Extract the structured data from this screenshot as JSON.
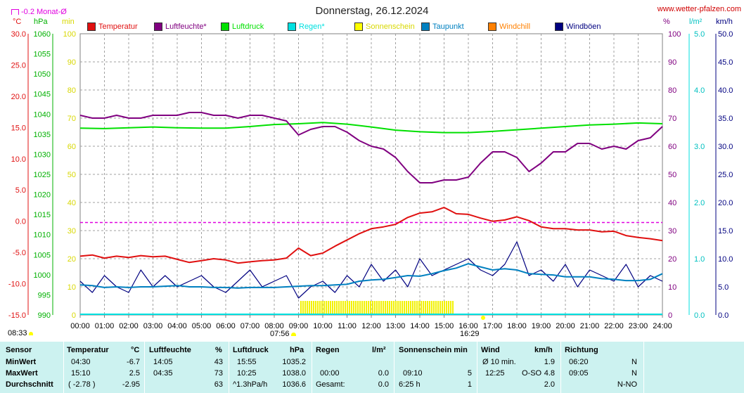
{
  "header": {
    "title": "Donnerstag, 26.12.2024",
    "source": "www.wetter-pfalzen.com",
    "monthly_avg_marker": "-0.2 Monat-Ø"
  },
  "units": {
    "temp": "°C",
    "pressure": "hPa",
    "min": "min",
    "humidity": "%",
    "rain": "l/m²",
    "wind": "km/h"
  },
  "sun_times": {
    "sunrise": "07:56",
    "sunset": "16:29",
    "day_length": "08:33"
  },
  "colors": {
    "temperature": "#e01010",
    "humidity": "#800080",
    "pressure": "#00e000",
    "rain": "#00e0e0",
    "sunshine": "#ffff00",
    "dewpoint": "#0080c0",
    "windchill": "#ff8000",
    "gust": "#000080",
    "avg_line": "#e000e0"
  },
  "legend": [
    {
      "label": "Temperatur",
      "color": "#e01010"
    },
    {
      "label": "Luftfeuchte*",
      "color": "#800080"
    },
    {
      "label": "Luftdruck",
      "color": "#00e000"
    },
    {
      "label": "Regen*",
      "color": "#00e0e0"
    },
    {
      "label": "Sonnenschein",
      "color": "#ffff00"
    },
    {
      "label": "Taupunkt",
      "color": "#0080c0"
    },
    {
      "label": "Windchill",
      "color": "#ff8000"
    },
    {
      "label": "Windböen",
      "color": "#000080"
    }
  ],
  "chart_data": {
    "type": "line",
    "title": "Donnerstag, 26.12.2024",
    "x_ticks": [
      "00:00",
      "01:00",
      "02:00",
      "03:00",
      "04:00",
      "05:00",
      "06:00",
      "07:00",
      "08:00",
      "09:00",
      "10:00",
      "11:00",
      "12:00",
      "13:00",
      "14:00",
      "15:00",
      "16:00",
      "17:00",
      "18:00",
      "19:00",
      "20:00",
      "21:00",
      "22:00",
      "23:00",
      "24:00"
    ],
    "axes": {
      "temp": {
        "unit": "°C",
        "ylim": [
          -15,
          30
        ],
        "ticks": [
          "30.0",
          "25.0",
          "20.0",
          "15.0",
          "10.0",
          "5.0",
          "0.0",
          "-5.0",
          "-10.0",
          "-15.0"
        ]
      },
      "pressure": {
        "unit": "hPa",
        "ylim": [
          990,
          1060
        ],
        "ticks": [
          "1060",
          "1055",
          "1050",
          "1045",
          "1040",
          "1035",
          "1030",
          "1025",
          "1020",
          "1015",
          "1010",
          "1005",
          "1000",
          "995",
          "990"
        ]
      },
      "sunshine_min": {
        "unit": "min",
        "ylim": [
          0,
          100
        ],
        "ticks": [
          "100",
          "90",
          "80",
          "70",
          "60",
          "50",
          "40",
          "30",
          "20",
          "10",
          "0"
        ]
      },
      "humidity": {
        "unit": "%",
        "ylim": [
          0,
          100
        ],
        "ticks": [
          "100",
          "90",
          "80",
          "70",
          "60",
          "50",
          "40",
          "30",
          "20",
          "10",
          "0"
        ]
      },
      "rain": {
        "unit": "l/m²",
        "ylim": [
          0,
          5
        ],
        "ticks": [
          "5.0",
          "4.0",
          "3.0",
          "2.0",
          "1.0",
          "0.0"
        ]
      },
      "wind": {
        "unit": "km/h",
        "ylim": [
          0,
          50
        ],
        "ticks": [
          "50.0",
          "45.0",
          "40.0",
          "35.0",
          "30.0",
          "25.0",
          "20.0",
          "15.0",
          "10.0",
          "5.0",
          "0.0"
        ]
      }
    },
    "monthly_avg_temp": -0.2,
    "series": [
      {
        "name": "Temperatur",
        "axis": "temp",
        "x": [
          0,
          0.5,
          1,
          1.5,
          2,
          2.5,
          3,
          3.5,
          4,
          4.5,
          5,
          5.5,
          6,
          6.5,
          7,
          7.5,
          8,
          8.5,
          9,
          9.5,
          10,
          10.5,
          11,
          11.5,
          12,
          12.5,
          13,
          13.5,
          14,
          14.5,
          15,
          15.5,
          16,
          16.5,
          17,
          17.5,
          18,
          18.5,
          19,
          19.5,
          20,
          20.5,
          21,
          21.5,
          22,
          22.5,
          23,
          23.5,
          24
        ],
        "values": [
          -5.6,
          -5.4,
          -5.9,
          -5.6,
          -5.8,
          -5.5,
          -5.7,
          -5.6,
          -6.1,
          -6.6,
          -6.3,
          -6.0,
          -6.2,
          -6.7,
          -6.5,
          -6.3,
          -6.2,
          -5.9,
          -4.3,
          -5.5,
          -5.1,
          -4.0,
          -3.0,
          -2.0,
          -1.2,
          -0.9,
          -0.5,
          0.6,
          1.3,
          1.5,
          2.2,
          1.2,
          1.1,
          0.5,
          0.0,
          0.2,
          0.7,
          0.1,
          -0.9,
          -1.2,
          -1.2,
          -1.4,
          -1.4,
          -1.7,
          -1.6,
          -2.3,
          -2.6,
          -2.8,
          -3.1
        ]
      },
      {
        "name": "Luftfeuchte*",
        "axis": "humidity",
        "x": [
          0,
          0.5,
          1,
          1.5,
          2,
          2.5,
          3,
          3.5,
          4,
          4.5,
          5,
          5.5,
          6,
          6.5,
          7,
          7.5,
          8,
          8.5,
          9,
          9.5,
          10,
          10.5,
          11,
          11.5,
          12,
          12.5,
          13,
          13.5,
          14,
          14.5,
          15,
          15.5,
          16,
          16.5,
          17,
          17.5,
          18,
          18.5,
          19,
          19.5,
          20,
          20.5,
          21,
          21.5,
          22,
          22.5,
          23,
          23.5,
          24
        ],
        "values": [
          71,
          70,
          70,
          71,
          70,
          70,
          71,
          71,
          71,
          72,
          72,
          71,
          71,
          70,
          71,
          71,
          70,
          69,
          64,
          66,
          67,
          67,
          65,
          62,
          60,
          59,
          56,
          51,
          47,
          47,
          48,
          48,
          49,
          54,
          58,
          58,
          56,
          51,
          54,
          58,
          58,
          61,
          61,
          59,
          60,
          59,
          62,
          63,
          67
        ]
      },
      {
        "name": "Luftdruck",
        "axis": "pressure",
        "x": [
          0,
          1,
          2,
          3,
          4,
          5,
          6,
          7,
          8,
          9,
          10,
          11,
          12,
          13,
          14,
          15,
          16,
          17,
          18,
          19,
          20,
          21,
          22,
          23,
          24
        ],
        "values": [
          1036.5,
          1036.4,
          1036.6,
          1036.8,
          1036.6,
          1036.5,
          1036.5,
          1036.9,
          1037.4,
          1037.6,
          1037.9,
          1037.5,
          1036.8,
          1036.0,
          1035.6,
          1035.4,
          1035.4,
          1035.7,
          1036.1,
          1036.5,
          1036.9,
          1037.3,
          1037.5,
          1037.8,
          1037.6
        ]
      },
      {
        "name": "Taupunkt",
        "axis": "temp",
        "x": [
          0,
          0.5,
          1,
          1.5,
          2,
          2.5,
          3,
          3.5,
          4,
          4.5,
          5,
          5.5,
          6,
          6.5,
          7,
          7.5,
          8,
          8.5,
          9,
          9.5,
          10,
          10.5,
          11,
          11.5,
          12,
          12.5,
          13,
          13.5,
          14,
          14.5,
          15,
          15.5,
          16,
          16.5,
          17,
          17.5,
          18,
          18.5,
          19,
          19.5,
          20,
          20.5,
          21,
          21.5,
          22,
          22.5,
          23,
          23.5,
          24
        ],
        "values": [
          -10.2,
          -10.3,
          -10.6,
          -10.5,
          -10.6,
          -10.5,
          -10.5,
          -10.4,
          -10.3,
          -10.5,
          -10.5,
          -10.6,
          -10.6,
          -10.7,
          -10.6,
          -10.6,
          -10.6,
          -10.5,
          -10.4,
          -10.3,
          -10.3,
          -10.2,
          -10.1,
          -9.6,
          -9.4,
          -9.3,
          -9.0,
          -8.7,
          -8.8,
          -8.4,
          -7.9,
          -7.5,
          -6.8,
          -7.3,
          -7.8,
          -7.6,
          -7.8,
          -8.4,
          -8.5,
          -8.6,
          -8.9,
          -8.9,
          -8.9,
          -9.2,
          -9.3,
          -9.5,
          -9.5,
          -9.3,
          -8.4
        ]
      },
      {
        "name": "Windböen",
        "axis": "wind",
        "x": [
          0,
          0.5,
          1,
          1.5,
          2,
          2.5,
          3,
          3.5,
          4,
          4.5,
          5,
          5.5,
          6,
          6.5,
          7,
          7.5,
          8,
          8.5,
          9,
          9.5,
          10,
          10.5,
          11,
          11.5,
          12,
          12.5,
          13,
          13.5,
          14,
          14.5,
          15,
          15.5,
          16,
          16.5,
          17,
          17.5,
          18,
          18.5,
          19,
          19.5,
          20,
          20.5,
          21,
          21.5,
          22,
          22.5,
          23,
          23.5,
          24
        ],
        "values": [
          6,
          4,
          7,
          5,
          4,
          8,
          5,
          7,
          5,
          6,
          7,
          5,
          4,
          6,
          8,
          5,
          6,
          7,
          3,
          5,
          6,
          4,
          7,
          5,
          9,
          6,
          8,
          5,
          10,
          7,
          8,
          9,
          10,
          8,
          7,
          9,
          13,
          7,
          8,
          6,
          9,
          5,
          8,
          7,
          6,
          9,
          5,
          7,
          6
        ]
      }
    ],
    "sunshine_intervals": [
      [
        9.1,
        15.4
      ]
    ],
    "rain_total": 0.0
  },
  "stats": {
    "headers": {
      "sensor": "Sensor",
      "temperatur": "Temperatur",
      "temperatur_unit": "°C",
      "luftfeuchte": "Luftfeuchte",
      "luftfeuchte_unit": "%",
      "luftdruck": "Luftdruck",
      "luftdruck_unit": "hPa",
      "regen": "Regen",
      "regen_unit": "l/m²",
      "sonnenschein": "Sonnenschein min",
      "wind": "Wind",
      "wind_unit": "km/h",
      "richtung": "Richtung"
    },
    "rows": [
      {
        "label": "MinWert",
        "temp_time": "04:30",
        "temp_val": "-6.7",
        "hum_time": "14:05",
        "hum_val": "43",
        "press_time": "15:55",
        "press_val": "1035.2",
        "rain_time": "",
        "rain_val": "",
        "sun_time": "",
        "sun_val": "",
        "wind_time": "Ø 10 min.",
        "wind_dir": "",
        "wind_val": "1.9",
        "dir_time": "06:20",
        "dir_val": "N"
      },
      {
        "label": "MaxWert",
        "temp_time": "15:10",
        "temp_val": "2.5",
        "hum_time": "04:35",
        "hum_val": "73",
        "press_time": "10:25",
        "press_val": "1038.0",
        "rain_time": "00:00",
        "rain_val": "0.0",
        "sun_time": "09:10",
        "sun_val": "5",
        "wind_time": "12:25",
        "wind_dir": "O-SO",
        "wind_val": "4.8",
        "dir_time": "09:05",
        "dir_val": "N"
      },
      {
        "label": "Durchschnitt",
        "temp_time": "( -2.78 )",
        "temp_val": "-2.95",
        "hum_time": "",
        "hum_val": "63",
        "press_time": "^1.3hPa/h",
        "press_val": "1036.6",
        "rain_time": "Gesamt:",
        "rain_val": "0.0",
        "sun_time": "6:25 h",
        "sun_val": "1",
        "wind_time": "",
        "wind_dir": "",
        "wind_val": "2.0",
        "dir_time": "",
        "dir_val": "N-NO"
      }
    ]
  }
}
